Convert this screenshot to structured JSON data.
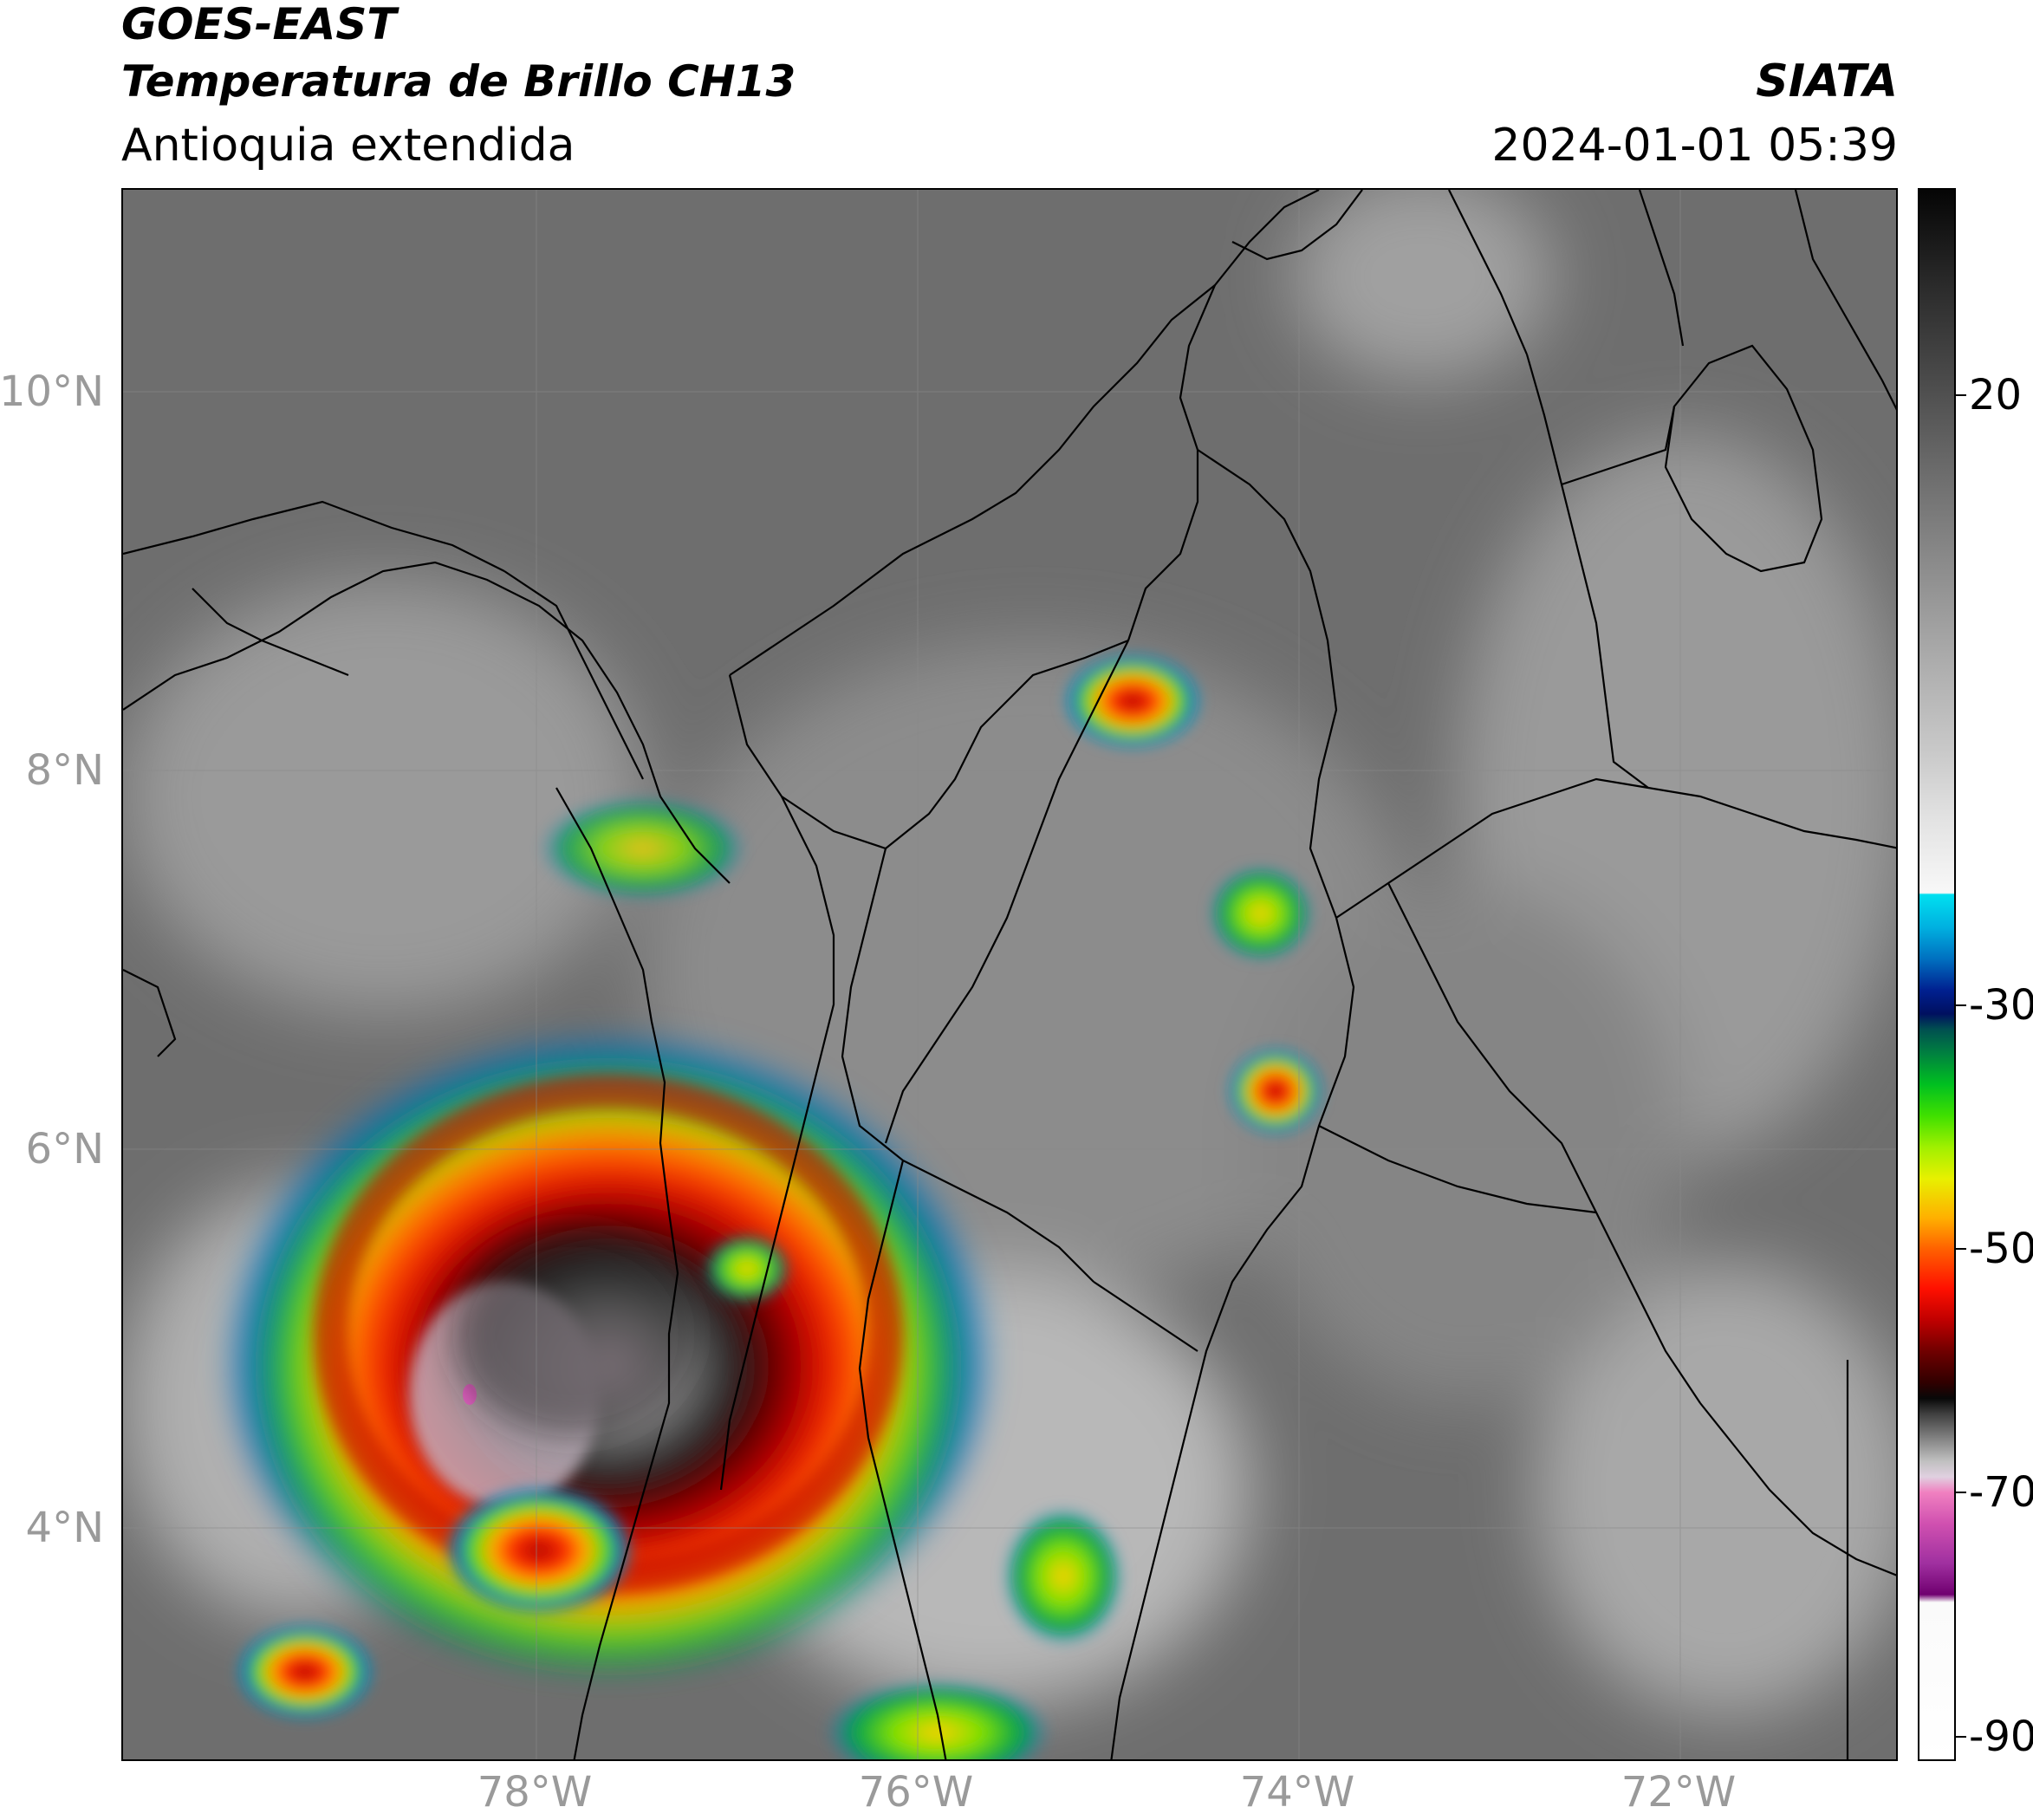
{
  "header": {
    "line1": "GOES-EAST",
    "line2": "Temperatura de Brillo CH13",
    "region": "Antioquia extendida",
    "organization": "SIATA",
    "timestamp": "2024-01-01 05:39"
  },
  "map": {
    "latitude_labels": [
      "10°N",
      "8°N",
      "6°N",
      "4°N"
    ],
    "longitude_labels": [
      "78°W",
      "76°W",
      "74°W",
      "72°W"
    ],
    "background_color": "#6e6e6e",
    "boundary_color": "#000000"
  },
  "colorbar": {
    "tick_labels": [
      "20",
      "-30",
      "-50",
      "-70",
      "-90"
    ],
    "tick_values": [
      20,
      -30,
      -50,
      -70,
      -90
    ],
    "range": [
      -92,
      37
    ]
  }
}
